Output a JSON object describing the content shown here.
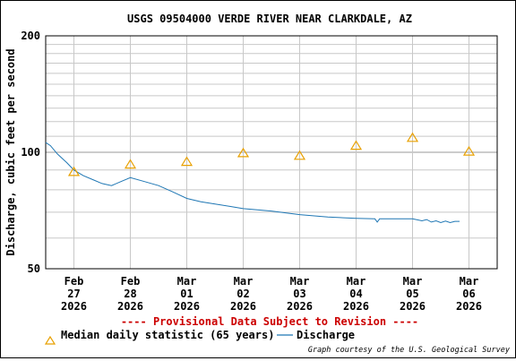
{
  "chart_data": {
    "type": "line",
    "title": "USGS 09504000 VERDE RIVER NEAR CLARKDALE, AZ",
    "ylabel": "Discharge, cubic feet per second",
    "xlabel": "",
    "yscale": "log",
    "ylim": [
      50,
      200
    ],
    "yticks": [
      {
        "value": 50,
        "label": "50"
      },
      {
        "value": 100,
        "label": "100"
      },
      {
        "value": 200,
        "label": "200"
      }
    ],
    "xlim": [
      "2026-02-26T12:00",
      "2026-03-06T12:00"
    ],
    "xticks": [
      {
        "x": "2026-02-27",
        "lines": [
          "Feb",
          "27",
          "2026"
        ]
      },
      {
        "x": "2026-02-28",
        "lines": [
          "Feb",
          "28",
          "2026"
        ]
      },
      {
        "x": "2026-03-01",
        "lines": [
          "Mar",
          "01",
          "2026"
        ]
      },
      {
        "x": "2026-03-02",
        "lines": [
          "Mar",
          "02",
          "2026"
        ]
      },
      {
        "x": "2026-03-03",
        "lines": [
          "Mar",
          "03",
          "2026"
        ]
      },
      {
        "x": "2026-03-04",
        "lines": [
          "Mar",
          "04",
          "2026"
        ]
      },
      {
        "x": "2026-03-05",
        "lines": [
          "Mar",
          "05",
          "2026"
        ]
      },
      {
        "x": "2026-03-06",
        "lines": [
          "Mar",
          "06",
          "2026"
        ]
      }
    ],
    "grid": true,
    "series": [
      {
        "name": "Discharge",
        "kind": "line",
        "color": "#1f77b4",
        "points": [
          {
            "x": "2026-02-26T12:00",
            "y": 106
          },
          {
            "x": "2026-02-26T14:00",
            "y": 104
          },
          {
            "x": "2026-02-26T17:00",
            "y": 99
          },
          {
            "x": "2026-02-26T21:00",
            "y": 94
          },
          {
            "x": "2026-02-27T00:00",
            "y": 90
          },
          {
            "x": "2026-02-27T04:00",
            "y": 87
          },
          {
            "x": "2026-02-27T08:00",
            "y": 85
          },
          {
            "x": "2026-02-27T12:00",
            "y": 83
          },
          {
            "x": "2026-02-27T16:00",
            "y": 82
          },
          {
            "x": "2026-02-27T20:00",
            "y": 84
          },
          {
            "x": "2026-02-28T00:00",
            "y": 86
          },
          {
            "x": "2026-02-28T06:00",
            "y": 84
          },
          {
            "x": "2026-02-28T12:00",
            "y": 82
          },
          {
            "x": "2026-02-28T18:00",
            "y": 79
          },
          {
            "x": "2026-03-01T00:00",
            "y": 76
          },
          {
            "x": "2026-03-01T06:00",
            "y": 74.5
          },
          {
            "x": "2026-03-01T12:00",
            "y": 73.5
          },
          {
            "x": "2026-03-01T18:00",
            "y": 72.5
          },
          {
            "x": "2026-03-02T00:00",
            "y": 71.5
          },
          {
            "x": "2026-03-02T12:00",
            "y": 70.5
          },
          {
            "x": "2026-03-03T00:00",
            "y": 69
          },
          {
            "x": "2026-03-03T12:00",
            "y": 68
          },
          {
            "x": "2026-03-04T00:00",
            "y": 67.5
          },
          {
            "x": "2026-03-04T08:00",
            "y": 67.3
          },
          {
            "x": "2026-03-04T09:00",
            "y": 66
          },
          {
            "x": "2026-03-04T10:00",
            "y": 67.3
          },
          {
            "x": "2026-03-04T18:00",
            "y": 67.3
          },
          {
            "x": "2026-03-05T00:00",
            "y": 67.3
          },
          {
            "x": "2026-03-05T04:00",
            "y": 66.5
          },
          {
            "x": "2026-03-05T06:00",
            "y": 67
          },
          {
            "x": "2026-03-05T08:00",
            "y": 66
          },
          {
            "x": "2026-03-05T10:00",
            "y": 66.5
          },
          {
            "x": "2026-03-05T12:00",
            "y": 65.8
          },
          {
            "x": "2026-03-05T14:00",
            "y": 66.4
          },
          {
            "x": "2026-03-05T16:00",
            "y": 65.8
          },
          {
            "x": "2026-03-05T18:00",
            "y": 66.3
          },
          {
            "x": "2026-03-05T20:00",
            "y": 66.3
          }
        ]
      },
      {
        "name": "Median daily statistic (65 years)",
        "kind": "marker",
        "marker": "triangle",
        "color": "#e8a000",
        "points": [
          {
            "x": "2026-02-27",
            "y": 89
          },
          {
            "x": "2026-02-28",
            "y": 93
          },
          {
            "x": "2026-03-01",
            "y": 94.5
          },
          {
            "x": "2026-03-02",
            "y": 99.5
          },
          {
            "x": "2026-03-03",
            "y": 98
          },
          {
            "x": "2026-03-04",
            "y": 104
          },
          {
            "x": "2026-03-05",
            "y": 109
          },
          {
            "x": "2026-03-06",
            "y": 100.5
          }
        ]
      }
    ],
    "annotations": {
      "notice": "---- Provisional Data Subject to Revision ----",
      "credit": "Graph courtesy of the U.S. Geological Survey"
    },
    "legend": {
      "placement": "bottom",
      "items": [
        {
          "label": "Median daily statistic (65 years)",
          "symbol": "triangle",
          "color": "#e8a000"
        },
        {
          "label": "Discharge",
          "symbol": "line",
          "color": "#1f77b4"
        }
      ]
    }
  }
}
